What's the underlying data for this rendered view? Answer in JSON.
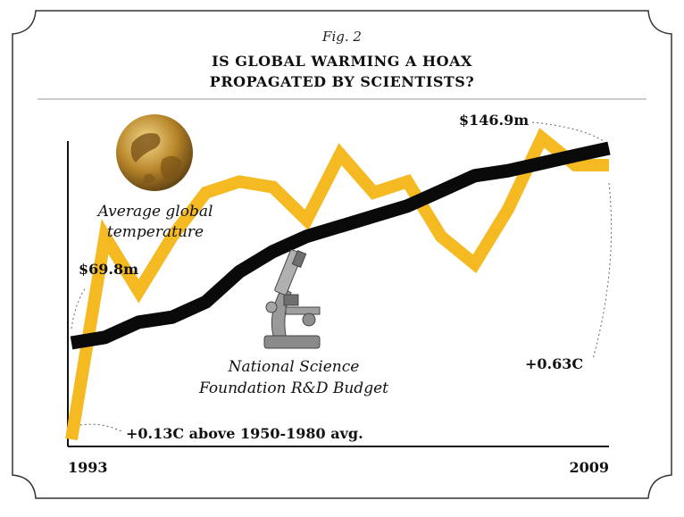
{
  "figure_label": "Fig. 2",
  "title_line1": "IS GLOBAL WARMING A HOAX",
  "title_line2": "PROPAGATED BY SCIENTISTS?",
  "colors": {
    "temperature": "#f5b921",
    "budget": "#0a0a0a",
    "frame": "#333333"
  },
  "chart_data": {
    "type": "line",
    "x": [
      1993,
      1994,
      1995,
      1996,
      1997,
      1998,
      1999,
      2000,
      2001,
      2002,
      2003,
      2004,
      2005,
      2006,
      2007,
      2008,
      2009
    ],
    "xlim": [
      1993,
      2009
    ],
    "series": [
      {
        "name": "Average global temperature",
        "color": "#f5b921",
        "values": [
          0.13,
          0.5,
          0.4,
          0.5,
          0.58,
          0.6,
          0.59,
          0.53,
          0.65,
          0.58,
          0.6,
          0.5,
          0.45,
          0.55,
          0.68,
          0.63,
          0.63
        ]
      },
      {
        "name": "National Science Foundation R&D Budget",
        "color": "#0a0a0a",
        "values": [
          69.8,
          72,
          78,
          80,
          86,
          98,
          106,
          112,
          116,
          120,
          124,
          130,
          136,
          138,
          141,
          144,
          146.9
        ]
      }
    ],
    "tick_labels": [
      "1993",
      "2009"
    ],
    "annotations": {
      "budget_start": "$69.8m",
      "budget_end": "$146.9m",
      "temp_start": "+0.13C above 1950-1980 avg.",
      "temp_end": "+0.63C"
    },
    "labels": {
      "temperature_line1": "Average global",
      "temperature_line2": "temperature",
      "budget_line1": "National Science",
      "budget_line2": "Foundation R&D Budget"
    }
  }
}
